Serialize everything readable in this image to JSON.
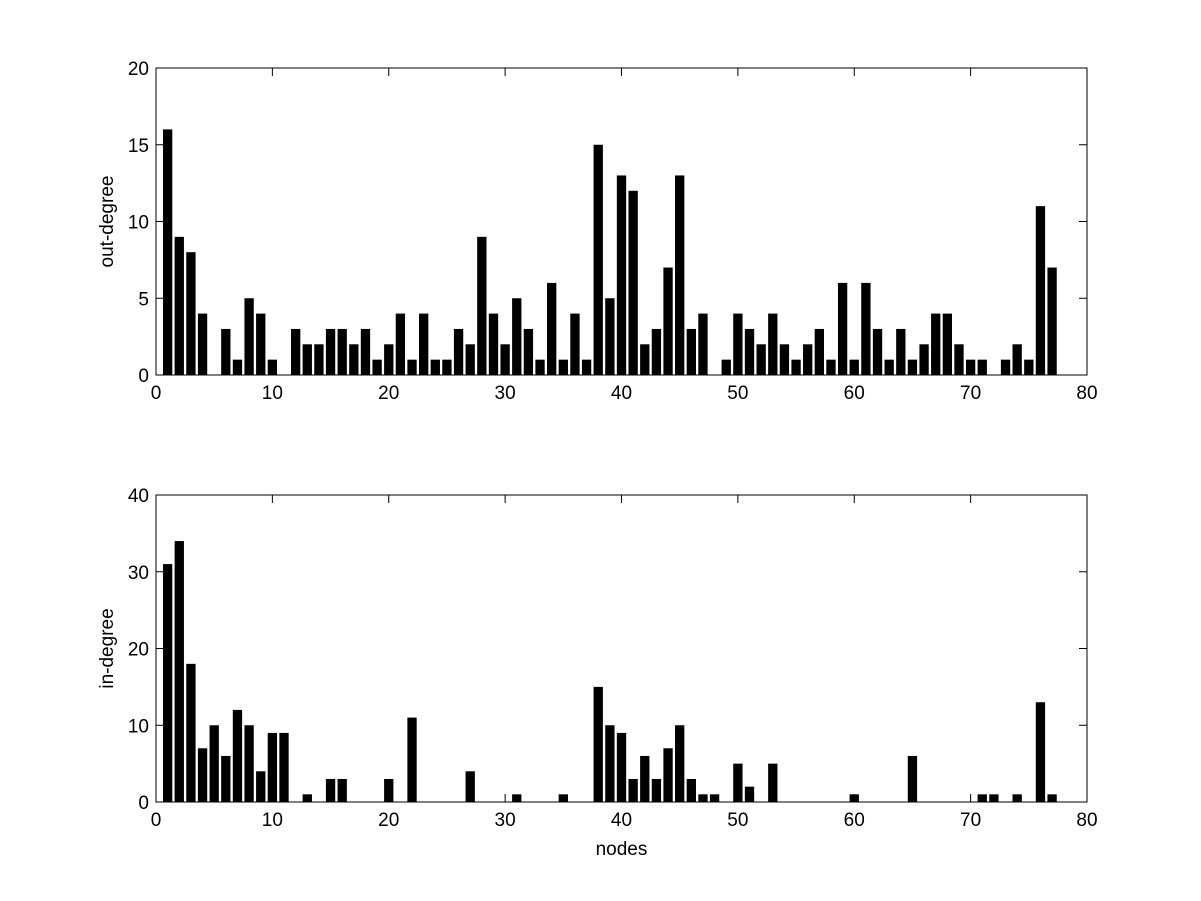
{
  "chart_data": [
    {
      "type": "bar",
      "xlabel": "",
      "ylabel": "out-degree",
      "xlim": [
        0,
        80
      ],
      "ylim": [
        0,
        20
      ],
      "xticks": [
        0,
        10,
        20,
        30,
        40,
        50,
        60,
        70,
        80
      ],
      "yticks": [
        0,
        5,
        10,
        15,
        20
      ],
      "grid": false,
      "bar_color": "#000000",
      "x": [
        1,
        2,
        3,
        4,
        5,
        6,
        7,
        8,
        9,
        10,
        11,
        12,
        13,
        14,
        15,
        16,
        17,
        18,
        19,
        20,
        21,
        22,
        23,
        24,
        25,
        26,
        27,
        28,
        29,
        30,
        31,
        32,
        33,
        34,
        35,
        36,
        37,
        38,
        39,
        40,
        41,
        42,
        43,
        44,
        45,
        46,
        47,
        48,
        49,
        50,
        51,
        52,
        53,
        54,
        55,
        56,
        57,
        58,
        59,
        60,
        61,
        62,
        63,
        64,
        65,
        66,
        67,
        68,
        69,
        70,
        71,
        72,
        73,
        74,
        75,
        76,
        77
      ],
      "values": [
        16,
        9,
        8,
        4,
        0,
        3,
        1,
        5,
        4,
        1,
        0,
        3,
        2,
        2,
        3,
        3,
        2,
        3,
        1,
        2,
        4,
        1,
        4,
        1,
        1,
        3,
        2,
        9,
        4,
        2,
        5,
        3,
        1,
        6,
        1,
        4,
        1,
        15,
        5,
        13,
        12,
        2,
        3,
        7,
        13,
        3,
        4,
        0,
        1,
        4,
        3,
        2,
        4,
        2,
        1,
        2,
        3,
        1,
        6,
        1,
        6,
        3,
        1,
        3,
        1,
        2,
        4,
        4,
        2,
        1,
        1,
        0,
        1,
        2,
        1,
        11,
        7
      ]
    },
    {
      "type": "bar",
      "xlabel": "nodes",
      "ylabel": "in-degree",
      "xlim": [
        0,
        80
      ],
      "ylim": [
        0,
        40
      ],
      "xticks": [
        0,
        10,
        20,
        30,
        40,
        50,
        60,
        70,
        80
      ],
      "yticks": [
        0,
        10,
        20,
        30,
        40
      ],
      "grid": false,
      "bar_color": "#000000",
      "x": [
        1,
        2,
        3,
        4,
        5,
        6,
        7,
        8,
        9,
        10,
        11,
        12,
        13,
        14,
        15,
        16,
        17,
        18,
        19,
        20,
        21,
        22,
        23,
        24,
        25,
        26,
        27,
        28,
        29,
        30,
        31,
        32,
        33,
        34,
        35,
        36,
        37,
        38,
        39,
        40,
        41,
        42,
        43,
        44,
        45,
        46,
        47,
        48,
        49,
        50,
        51,
        52,
        53,
        54,
        55,
        56,
        57,
        58,
        59,
        60,
        61,
        62,
        63,
        64,
        65,
        66,
        67,
        68,
        69,
        70,
        71,
        72,
        73,
        74,
        75,
        76,
        77
      ],
      "values": [
        31,
        34,
        18,
        7,
        10,
        6,
        12,
        10,
        4,
        9,
        9,
        0,
        1,
        0,
        3,
        3,
        0,
        0,
        0,
        3,
        0,
        11,
        0,
        0,
        0,
        0,
        4,
        0,
        0,
        0,
        1,
        0,
        0,
        0,
        1,
        0,
        0,
        15,
        10,
        9,
        3,
        6,
        3,
        7,
        10,
        3,
        1,
        1,
        0,
        5,
        2,
        0,
        5,
        0,
        0,
        0,
        0,
        0,
        0,
        1,
        0,
        0,
        0,
        0,
        6,
        0,
        0,
        0,
        0,
        0,
        1,
        1,
        0,
        1,
        0,
        13,
        1
      ]
    }
  ]
}
